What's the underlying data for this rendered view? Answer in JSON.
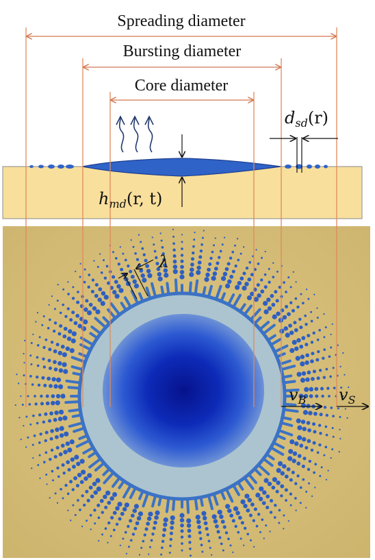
{
  "labels": {
    "spreading": "Spreading diameter",
    "bursting": "Bursting diameter",
    "core": "Core diameter",
    "dsd_main": "d",
    "dsd_sub": "sd",
    "dsd_arg": "(r)",
    "hmd_main": "h",
    "hmd_sub": "md",
    "hmd_arg": "(r, t)",
    "lambda": "λ",
    "vb_main": "v",
    "vb_sub": "B",
    "vs_main": "v",
    "vs_sub": "S"
  },
  "colors": {
    "guide_lines": "#e0895a",
    "substrate": "#f8df9c",
    "photo_bg": "#d8c07e",
    "droplet": "#2f63c8",
    "core_center": "#06128c",
    "halo": "#a9c4d4",
    "arrow": "#111111"
  }
}
